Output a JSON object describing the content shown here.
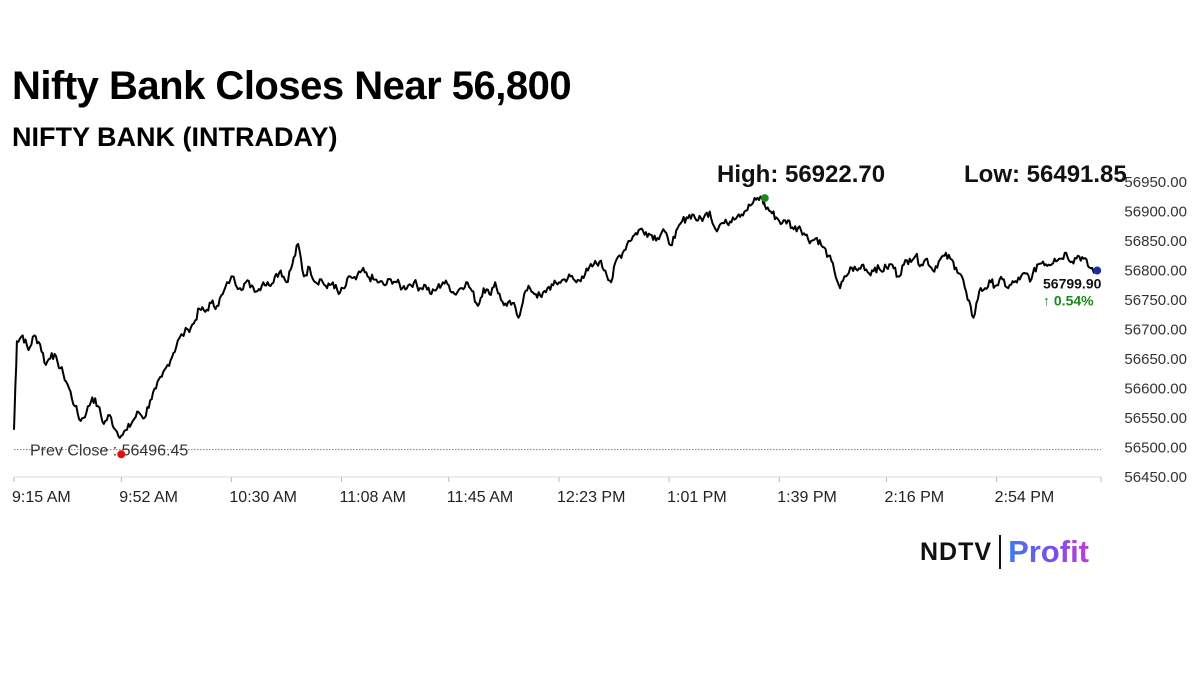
{
  "headline": "Nifty Bank Closes Near 56,800",
  "logo": {
    "ndtv": "NDTV",
    "profit": "Profit"
  },
  "colors": {
    "line": "#000000",
    "high_dot": "#1a8a1a",
    "low_dot": "#e01010",
    "close_dot": "#1a2fa0",
    "change_text": "#1a8a1a",
    "prev_close_line": "#e05050"
  },
  "chart_data": {
    "type": "line",
    "title": "NIFTY BANK (INTRADAY)",
    "high_label": "High: 56922.70",
    "low_label": "Low: 56491.85",
    "high": 56922.7,
    "low": 56491.85,
    "prev_close_label": "Prev Close : 56496.45",
    "prev_close": 56496.45,
    "last_value_label": "56799.90",
    "last_value": 56799.9,
    "change_label": "↑ 0.54%",
    "ylim": [
      56450,
      56950
    ],
    "y_ticks": [
      "56950.00",
      "56900.00",
      "56850.00",
      "56800.00",
      "56750.00",
      "56700.00",
      "56650.00",
      "56600.00",
      "56550.00",
      "56500.00",
      "56450.00"
    ],
    "y_tick_values": [
      56950,
      56900,
      56850,
      56800,
      56750,
      56700,
      56650,
      56600,
      56550,
      56500,
      56450
    ],
    "x_ticks": [
      "9:15 AM",
      "9:52 AM",
      "10:30 AM",
      "11:08 AM",
      "11:45 AM",
      "12:23 PM",
      "1:01 PM",
      "1:39 PM",
      "2:16 PM",
      "2:54 PM"
    ],
    "x_tick_minutes": [
      0,
      37,
      75,
      113,
      150,
      188,
      226,
      264,
      301,
      339
    ],
    "x_range_minutes": [
      0,
      375
    ],
    "high_minute": 259,
    "low_minute": 37,
    "series": [
      {
        "minutes": [
          0,
          1,
          3,
          5,
          7,
          9,
          11,
          13,
          15,
          17,
          19,
          21,
          23,
          25,
          27,
          29,
          31,
          33,
          35,
          37,
          39,
          41,
          43,
          45,
          47,
          49,
          51,
          53,
          55,
          57,
          60,
          62,
          64,
          66,
          68,
          70,
          72,
          75,
          78,
          80,
          82,
          84,
          86,
          88,
          90,
          92,
          94,
          96,
          98,
          100,
          102,
          104,
          106,
          108,
          110,
          112,
          114,
          116,
          118,
          120,
          122,
          124,
          126,
          128,
          130,
          132,
          134,
          136,
          138,
          140,
          142,
          144,
          146,
          148,
          150,
          152,
          154,
          156,
          158,
          160,
          162,
          164,
          166,
          168,
          170,
          172,
          174,
          176,
          178,
          180,
          182,
          184,
          186,
          188,
          190,
          192,
          194,
          196,
          198,
          200,
          202,
          204,
          206,
          208,
          210,
          212,
          214,
          216,
          218,
          220,
          222,
          224,
          226,
          228,
          230,
          232,
          234,
          236,
          238,
          240,
          242,
          244,
          246,
          248,
          250,
          252,
          254,
          256,
          258,
          259,
          261,
          263,
          265,
          267,
          269,
          271,
          273,
          275,
          277,
          279,
          281,
          283,
          285,
          287,
          289,
          291,
          293,
          295,
          297,
          299,
          301,
          303,
          305,
          307,
          309,
          311,
          313,
          315,
          317,
          319,
          321,
          323,
          325,
          327,
          329,
          331,
          333,
          335,
          337,
          339,
          341,
          343,
          345,
          347,
          349,
          351,
          353,
          355,
          357,
          359,
          361,
          363,
          365,
          367,
          369,
          371,
          373
        ],
        "values": [
          56530,
          56680,
          56690,
          56665,
          56690,
          56675,
          56640,
          56660,
          56645,
          56625,
          56600,
          56570,
          56545,
          56560,
          56585,
          56570,
          56540,
          56555,
          56530,
          56520,
          56530,
          56545,
          56560,
          56550,
          56580,
          56600,
          56620,
          56640,
          56660,
          56685,
          56700,
          56710,
          56735,
          56730,
          56745,
          56740,
          56760,
          56790,
          56770,
          56780,
          56775,
          56765,
          56780,
          56775,
          56790,
          56800,
          56780,
          56810,
          56845,
          56790,
          56805,
          56780,
          56785,
          56770,
          56780,
          56760,
          56770,
          56790,
          56785,
          56800,
          56790,
          56785,
          56780,
          56775,
          56785,
          56780,
          56770,
          56775,
          56780,
          56770,
          56775,
          56760,
          56770,
          56780,
          56775,
          56760,
          56770,
          56780,
          56765,
          56740,
          56770,
          56760,
          56780,
          56750,
          56740,
          56745,
          56720,
          56760,
          56770,
          56760,
          56755,
          56770,
          56775,
          56780,
          56785,
          56790,
          56780,
          56790,
          56800,
          56810,
          56815,
          56800,
          56780,
          56820,
          56830,
          56850,
          56860,
          56870,
          56865,
          56860,
          56855,
          56870,
          56845,
          56855,
          56880,
          56890,
          56895,
          56885,
          56890,
          56900,
          56870,
          56880,
          56880,
          56890,
          56895,
          56900,
          56910,
          56920,
          56922.7,
          56910,
          56900,
          56890,
          56880,
          56885,
          56870,
          56875,
          56860,
          56850,
          56855,
          56840,
          56825,
          56800,
          56770,
          56790,
          56805,
          56800,
          56810,
          56795,
          56805,
          56800,
          56805,
          56810,
          56790,
          56810,
          56820,
          56825,
          56810,
          56820,
          56800,
          56815,
          56825,
          56820,
          56805,
          56790,
          56750,
          56720,
          56765,
          56770,
          56780,
          56775,
          56785,
          56770,
          56780,
          56785,
          56795,
          56785,
          56810,
          56815,
          56810,
          56820,
          56820,
          56830,
          56815,
          56825,
          56820,
          56805,
          56799.9
        ]
      }
    ]
  }
}
